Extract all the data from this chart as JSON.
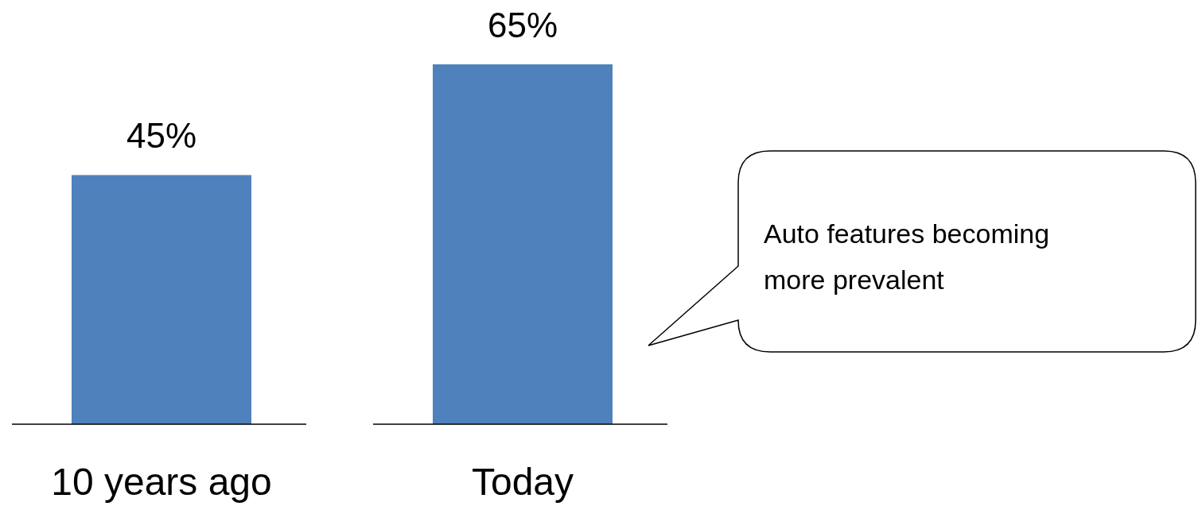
{
  "chart_data": {
    "type": "bar",
    "categories": [
      "10 years ago",
      "Today"
    ],
    "values": [
      45,
      65
    ],
    "value_labels": [
      "45%",
      "65%"
    ],
    "color": "#4f81bd",
    "annotations": [
      "Auto features becoming more prevalent"
    ]
  }
}
